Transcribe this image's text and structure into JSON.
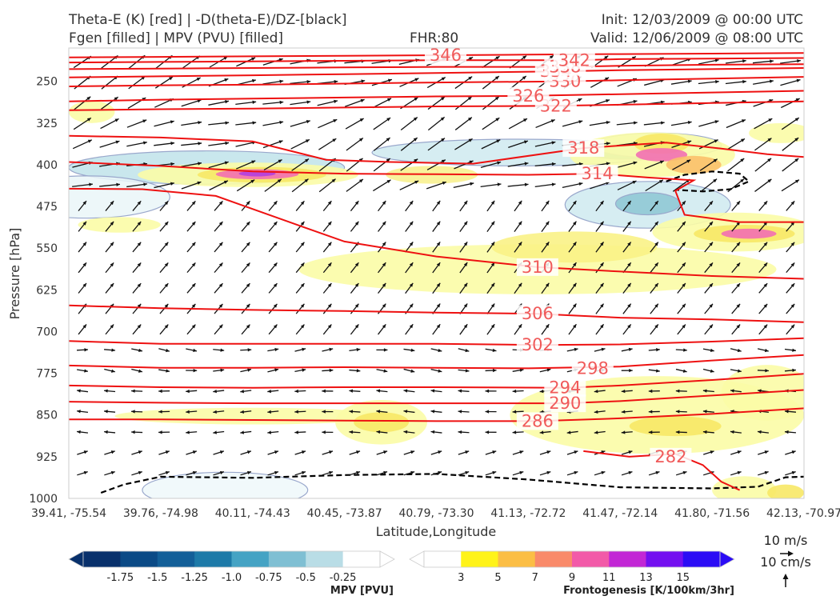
{
  "header": {
    "title_left_1": "Theta-E (K) [red] | -D(theta-E)/DZ-[black]",
    "title_left_2": "Fgen [filled] | MPV (PVU) [filled]",
    "fhr": "FHR:80",
    "init": "Init: 12/03/2009 @ 00:00 UTC",
    "valid": "Valid: 12/06/2009 @ 08:00 UTC"
  },
  "colors": {
    "theta_e": "#ee1111",
    "contour_label": "#f05a5a",
    "stability_contour": "#000000",
    "mpv_outline": "#9aa8cc",
    "wind_arrow": "#111111"
  },
  "chart_data": {
    "type": "cross-section",
    "xlabel": "Latitude,Longitude",
    "ylabel": "Pressure [hPa]",
    "x_ticks": [
      "39.41, -75.54",
      "39.76, -74.98",
      "40.11, -74.43",
      "40.45, -73.87",
      "40.79, -73.30",
      "41.13, -72.72",
      "41.47, -72.14",
      "41.80, -71.56",
      "42.13, -70.97"
    ],
    "y_ticks": [
      250,
      325,
      400,
      475,
      550,
      625,
      700,
      775,
      850,
      925,
      1000
    ],
    "ylim": [
      1000,
      190
    ],
    "x_range": [
      0,
      8
    ],
    "theta_e_contours": [
      {
        "level": 282,
        "label": "282",
        "label_at": [
          6.55,
          925
        ],
        "points": [
          [
            5.6,
            915
          ],
          [
            6.1,
            925
          ],
          [
            6.6,
            920
          ],
          [
            6.9,
            940
          ],
          [
            7.1,
            970
          ],
          [
            7.3,
            985
          ]
        ]
      },
      {
        "level": 286,
        "label": "286",
        "label_at": [
          5.1,
          861
        ],
        "points": [
          [
            0,
            858
          ],
          [
            1.0,
            858
          ],
          [
            2.0,
            859
          ],
          [
            3.0,
            860
          ],
          [
            4.0,
            861
          ],
          [
            5.1,
            861
          ],
          [
            6.0,
            856
          ],
          [
            7.0,
            848
          ],
          [
            8.0,
            838
          ]
        ]
      },
      {
        "level": 290,
        "label": "290",
        "label_at": [
          5.4,
          829
        ],
        "points": [
          [
            0,
            826
          ],
          [
            1.0,
            828
          ],
          [
            2.0,
            829
          ],
          [
            3.0,
            829
          ],
          [
            4.0,
            829
          ],
          [
            5.4,
            829
          ],
          [
            6.0,
            825
          ],
          [
            7.0,
            815
          ],
          [
            8.0,
            805
          ]
        ]
      },
      {
        "level": 294,
        "label": "294",
        "label_at": [
          5.4,
          801
        ],
        "points": [
          [
            0,
            797
          ],
          [
            1.0,
            800
          ],
          [
            2.0,
            801
          ],
          [
            3.0,
            800
          ],
          [
            4.0,
            800
          ],
          [
            5.4,
            801
          ],
          [
            6.0,
            797
          ],
          [
            7.0,
            787
          ],
          [
            8.0,
            776
          ]
        ]
      },
      {
        "level": 298,
        "label": "298",
        "label_at": [
          5.7,
          766
        ],
        "points": [
          [
            0,
            761
          ],
          [
            1.0,
            765
          ],
          [
            2.0,
            765
          ],
          [
            3.0,
            764
          ],
          [
            4.0,
            765
          ],
          [
            5.0,
            766
          ],
          [
            6.0,
            763
          ],
          [
            7.0,
            752
          ],
          [
            8.0,
            742
          ]
        ]
      },
      {
        "level": 302,
        "label": "302",
        "label_at": [
          5.1,
          724
        ],
        "points": [
          [
            0,
            717
          ],
          [
            1.0,
            722
          ],
          [
            2.0,
            722
          ],
          [
            3.0,
            722
          ],
          [
            4.0,
            722
          ],
          [
            5.1,
            724
          ],
          [
            6.0,
            723
          ],
          [
            7.0,
            718
          ],
          [
            8.0,
            712
          ]
        ]
      },
      {
        "level": 306,
        "label": "306",
        "label_at": [
          5.1,
          668
        ],
        "points": [
          [
            0,
            653
          ],
          [
            1.0,
            658
          ],
          [
            2.0,
            661
          ],
          [
            3.0,
            663
          ],
          [
            4.0,
            666
          ],
          [
            5.1,
            668
          ],
          [
            6.0,
            675
          ],
          [
            7.0,
            678
          ],
          [
            8.0,
            683
          ]
        ]
      },
      {
        "level": 310,
        "label": "310",
        "label_at": [
          5.1,
          584
        ],
        "points": [
          [
            0,
            443
          ],
          [
            0.8,
            444
          ],
          [
            1.6,
            456
          ],
          [
            2.4,
            503
          ],
          [
            3.0,
            538
          ],
          [
            4.0,
            565
          ],
          [
            5.1,
            584
          ],
          [
            6.0,
            592
          ],
          [
            7.0,
            600
          ],
          [
            8.0,
            605
          ]
        ]
      },
      {
        "level": 314,
        "label": "314",
        "label_at": [
          5.75,
          416
        ],
        "points": [
          [
            0,
            395
          ],
          [
            1.0,
            402
          ],
          [
            2.0,
            412
          ],
          [
            3.0,
            416
          ],
          [
            4.0,
            417
          ],
          [
            5.0,
            418
          ],
          [
            5.75,
            416
          ],
          [
            6.3,
            423
          ],
          [
            6.8,
            428
          ],
          [
            6.6,
            447
          ],
          [
            6.7,
            490
          ],
          [
            7.3,
            503
          ],
          [
            8.0,
            503
          ]
        ]
      },
      {
        "level": 318,
        "label": "318",
        "label_at": [
          5.6,
          370
        ],
        "points": [
          [
            0,
            348
          ],
          [
            1.0,
            351
          ],
          [
            2.0,
            358
          ],
          [
            2.8,
            391
          ],
          [
            3.5,
            395
          ],
          [
            4.4,
            398
          ],
          [
            5.6,
            370
          ],
          [
            6.5,
            360
          ],
          [
            7.1,
            371
          ],
          [
            7.6,
            381
          ],
          [
            8.0,
            386
          ]
        ]
      },
      {
        "level": 322,
        "label": "322",
        "label_at": [
          5.3,
          294
        ],
        "points": [
          [
            0,
            302
          ],
          [
            1.0,
            300
          ],
          [
            2.0,
            299
          ],
          [
            3.0,
            297
          ],
          [
            4.0,
            295
          ],
          [
            5.3,
            294
          ],
          [
            6.0,
            292
          ],
          [
            7.0,
            289
          ],
          [
            8.0,
            286
          ]
        ]
      },
      {
        "level": 326,
        "label": "326",
        "label_at": [
          5.0,
          276
        ],
        "points": [
          [
            0,
            286
          ],
          [
            1.0,
            283
          ],
          [
            2.0,
            281
          ],
          [
            3.0,
            279
          ],
          [
            4.0,
            277
          ],
          [
            5.0,
            276
          ],
          [
            6.0,
            273
          ],
          [
            7.0,
            270
          ],
          [
            8.0,
            267
          ]
        ]
      },
      {
        "level": 330,
        "label": "330",
        "label_at": [
          5.4,
          250
        ],
        "points": [
          [
            0,
            259
          ],
          [
            1.0,
            257
          ],
          [
            2.0,
            256
          ],
          [
            3.0,
            254
          ],
          [
            4.0,
            252
          ],
          [
            5.4,
            250
          ],
          [
            6.0,
            248
          ],
          [
            7.0,
            245
          ],
          [
            8.0,
            242
          ]
        ]
      },
      {
        "level": 334,
        "label": "334",
        "label_at": [
          5.3,
          232
        ],
        "points": [
          [
            0,
            243
          ],
          [
            1.0,
            241
          ],
          [
            2.0,
            239
          ],
          [
            3.0,
            237
          ],
          [
            4.0,
            235
          ],
          [
            5.3,
            232
          ],
          [
            6.0,
            230
          ],
          [
            7.0,
            228
          ],
          [
            8.0,
            226
          ]
        ]
      },
      {
        "level": 338,
        "label": "338",
        "label_at": [
          5.4,
          224
        ],
        "points": [
          [
            0,
            228
          ],
          [
            1.0,
            227
          ],
          [
            2.0,
            226
          ],
          [
            3.0,
            225
          ],
          [
            4.0,
            224
          ],
          [
            5.4,
            224
          ],
          [
            6.0,
            222
          ],
          [
            7.0,
            220
          ],
          [
            8.0,
            219
          ]
        ]
      },
      {
        "level": 342,
        "label": "342",
        "label_at": [
          5.5,
          212
        ],
        "points": [
          [
            0,
            216
          ],
          [
            1.0,
            215
          ],
          [
            2.0,
            214
          ],
          [
            3.0,
            213
          ],
          [
            4.0,
            212
          ],
          [
            5.5,
            212
          ],
          [
            6.0,
            210
          ],
          [
            7.0,
            209
          ],
          [
            8.0,
            208
          ]
        ]
      },
      {
        "level": 346,
        "label": "346",
        "label_at": [
          4.1,
          203
        ],
        "points": [
          [
            0,
            207
          ],
          [
            1.0,
            206
          ],
          [
            2.0,
            205
          ],
          [
            3.0,
            204
          ],
          [
            4.1,
            203
          ],
          [
            5.0,
            202
          ],
          [
            6.0,
            201
          ],
          [
            7.0,
            200
          ],
          [
            8.0,
            199
          ]
        ]
      }
    ],
    "stability_contours": [
      {
        "points": [
          [
            0.35,
            990
          ],
          [
            0.6,
            975
          ],
          [
            1.0,
            961
          ],
          [
            2.0,
            963
          ],
          [
            3.0,
            958
          ],
          [
            4.0,
            956
          ],
          [
            5.0,
            966
          ],
          [
            6.0,
            980
          ],
          [
            7.0,
            982
          ],
          [
            7.5,
            979
          ],
          [
            7.8,
            962
          ],
          [
            8.0,
            961
          ]
        ]
      },
      {
        "points": [
          [
            6.5,
            430
          ],
          [
            6.7,
            418
          ],
          [
            7.0,
            412
          ],
          [
            7.3,
            416
          ],
          [
            7.4,
            430
          ],
          [
            7.2,
            444
          ],
          [
            6.9,
            448
          ],
          [
            6.6,
            445
          ]
        ]
      }
    ],
    "mpv_regions": [
      {
        "center": [
          1.5,
          405
        ],
        "rx": 1.5,
        "ry": 30,
        "color": "#bfe3ea"
      },
      {
        "center": [
          0.2,
          458
        ],
        "rx": 0.9,
        "ry": 38,
        "color": "#eaf6f8"
      },
      {
        "center": [
          1.7,
          985
        ],
        "rx": 0.9,
        "ry": 32,
        "color": "#eef8fa"
      },
      {
        "center": [
          4.9,
          378
        ],
        "rx": 1.6,
        "ry": 24,
        "color": "#cfeaf0"
      },
      {
        "center": [
          6.1,
          375
        ],
        "rx": 0.55,
        "ry": 15,
        "color": "#6fb7c9"
      },
      {
        "center": [
          6.3,
          472
        ],
        "rx": 0.9,
        "ry": 42,
        "color": "#cfeaf0"
      },
      {
        "center": [
          6.3,
          470
        ],
        "rx": 0.35,
        "ry": 20,
        "color": "#8cc6d4"
      },
      {
        "center": [
          6.4,
          365
        ],
        "rx": 0.7,
        "ry": 22,
        "color": "#d6eef2"
      }
    ],
    "fgen_regions": [
      {
        "center": [
          0.25,
          305
        ],
        "rx": 0.25,
        "ry": 20,
        "color": "#fbfca6"
      },
      {
        "center": [
          1.95,
          418
        ],
        "rx": 1.2,
        "ry": 22,
        "color": "#fbfca6"
      },
      {
        "center": [
          2.1,
          418
        ],
        "rx": 0.7,
        "ry": 14,
        "color": "#f7e866"
      },
      {
        "center": [
          2.05,
          417
        ],
        "rx": 0.45,
        "ry": 9,
        "color": "#f26fb3"
      },
      {
        "center": [
          2.05,
          416
        ],
        "rx": 0.2,
        "ry": 5,
        "color": "#b43ee0"
      },
      {
        "center": [
          3.95,
          418
        ],
        "rx": 0.5,
        "ry": 16,
        "color": "#f8f190"
      },
      {
        "center": [
          6.35,
          382
        ],
        "rx": 0.9,
        "ry": 40,
        "color": "#fbfca6"
      },
      {
        "center": [
          6.45,
          362
        ],
        "rx": 0.3,
        "ry": 18,
        "color": "#f7e866"
      },
      {
        "center": [
          6.45,
          382
        ],
        "rx": 0.28,
        "ry": 12,
        "color": "#f26fb3"
      },
      {
        "center": [
          6.8,
          400
        ],
        "rx": 0.3,
        "ry": 16,
        "color": "#fbc06a"
      },
      {
        "center": [
          7.75,
          343
        ],
        "rx": 0.35,
        "ry": 18,
        "color": "#fbfca6"
      },
      {
        "center": [
          5.1,
          588
        ],
        "rx": 2.6,
        "ry": 45,
        "color": "#fbfca6"
      },
      {
        "center": [
          5.5,
          548
        ],
        "rx": 0.9,
        "ry": 28,
        "color": "#f9f286"
      },
      {
        "center": [
          7.25,
          521
        ],
        "rx": 0.9,
        "ry": 35,
        "color": "#fbfca6"
      },
      {
        "center": [
          7.35,
          524
        ],
        "rx": 0.55,
        "ry": 16,
        "color": "#f7e866"
      },
      {
        "center": [
          7.4,
          524
        ],
        "rx": 0.3,
        "ry": 9,
        "color": "#f26fb3"
      },
      {
        "center": [
          0.55,
          508
        ],
        "rx": 0.45,
        "ry": 14,
        "color": "#fbfca6"
      },
      {
        "center": [
          2.0,
          852
        ],
        "rx": 1.5,
        "ry": 15,
        "color": "#fbfca6"
      },
      {
        "center": [
          3.4,
          863
        ],
        "rx": 0.5,
        "ry": 40,
        "color": "#fbfca6"
      },
      {
        "center": [
          3.4,
          863
        ],
        "rx": 0.3,
        "ry": 18,
        "color": "#f7e866"
      },
      {
        "center": [
          6.4,
          850
        ],
        "rx": 1.6,
        "ry": 70,
        "color": "#fbfca6"
      },
      {
        "center": [
          6.6,
          870
        ],
        "rx": 0.5,
        "ry": 18,
        "color": "#f7e866"
      },
      {
        "center": [
          7.6,
          810
        ],
        "rx": 0.5,
        "ry": 50,
        "color": "#fbfca6"
      },
      {
        "center": [
          7.35,
          985
        ],
        "rx": 0.35,
        "ry": 25,
        "color": "#fbfca6"
      },
      {
        "center": [
          7.8,
          990
        ],
        "rx": 0.2,
        "ry": 15,
        "color": "#f7e866"
      }
    ],
    "colorbar_mpv": {
      "label": "MPV [PVU]",
      "ticks": [
        "-1.75",
        "-1.5",
        "-1.25",
        "-1.0",
        "-0.75",
        "-0.5",
        "-0.25"
      ],
      "colors": [
        "#08306b",
        "#0b4a86",
        "#135f98",
        "#1d7aa8",
        "#45a3c4",
        "#7fbfd3",
        "#b9dde6",
        "#ffffff"
      ]
    },
    "colorbar_fgen": {
      "label": "Frontogenesis [K/100km/3hr]",
      "ticks": [
        "3",
        "5",
        "7",
        "9",
        "11",
        "13",
        "15"
      ],
      "colors": [
        "#ffffff",
        "#fff319",
        "#fbbe45",
        "#f98a6a",
        "#f25aa8",
        "#c227d5",
        "#7310f0",
        "#2b0cf5"
      ]
    },
    "reference_vectors": {
      "horizontal": "10 m/s",
      "vertical": "10 cm/s"
    }
  }
}
